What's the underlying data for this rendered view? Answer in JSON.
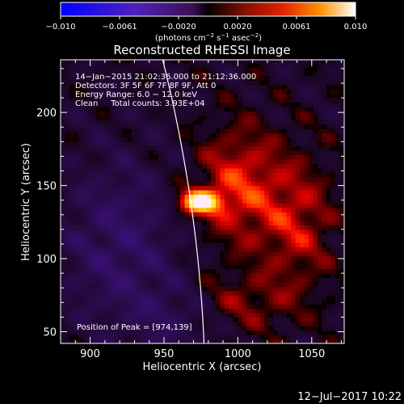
{
  "colorbar": {
    "ticks": [
      "−0.010",
      "−0.0061",
      "−0.0020",
      "0.0020",
      "0.0061",
      "0.010"
    ],
    "unit_parts": [
      "(photons cm",
      "−2",
      " s",
      "−1",
      " asec",
      "−2",
      ")"
    ]
  },
  "chart_data": {
    "type": "heatmap",
    "title": "Reconstructed RHESSI Image",
    "xlabel": "Heliocentric X (arcsec)",
    "ylabel": "Heliocentric Y (arcsec)",
    "xlim": [
      880,
      1072
    ],
    "ylim": [
      42,
      236
    ],
    "xticks": [
      900,
      950,
      1000,
      1050
    ],
    "yticks": [
      50,
      100,
      150,
      200
    ],
    "color_range": [
      -0.01,
      0.01
    ],
    "colormap": "IDL color table 3 (black-red-yellow-white), negatives in blue/purple",
    "peak": [
      974,
      139
    ],
    "info_lines": [
      "14−Jan−2015 21:02:36.000 to 21:12:36.000",
      "Detectors: 3F 5F 6F 7F 8F 9F, Att 0",
      "Energy Range: 6.0 − 12.0 keV",
      "Clean     Total counts: 3.93E+04"
    ],
    "peak_label": "Position of Peak = [974,139]"
  },
  "footer": {
    "timestamp": "12−Jul−2017 10:22"
  }
}
